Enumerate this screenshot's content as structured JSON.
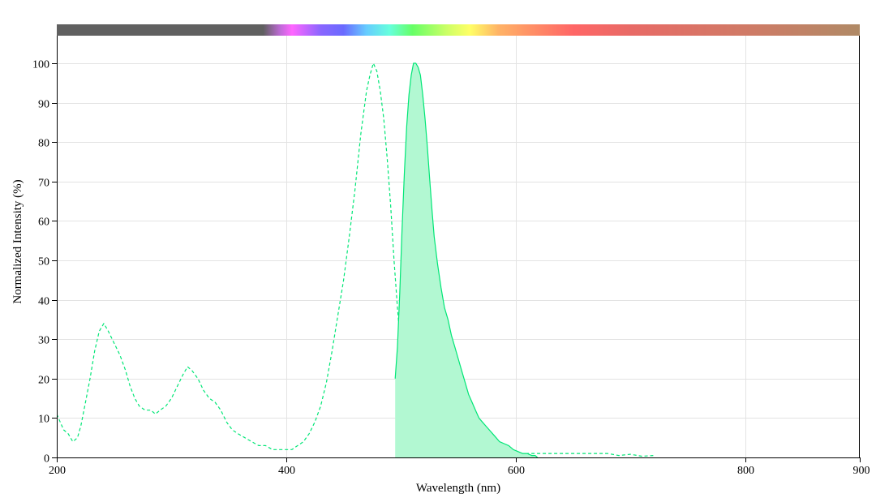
{
  "chart_data": {
    "type": "line",
    "xlabel": "Wavelength (nm)",
    "ylabel": "Normalized Intensity (%)",
    "xlim": [
      200,
      900
    ],
    "ylim": [
      0,
      100
    ],
    "x_ticks": [
      200,
      400,
      600,
      800,
      900
    ],
    "y_ticks": [
      0,
      10,
      20,
      30,
      40,
      50,
      60,
      70,
      80,
      90,
      100
    ],
    "grid": true,
    "spectrum_bar": true,
    "series": [
      {
        "style": "dashed",
        "color": "#00e676",
        "fill": false,
        "points": [
          [
            200,
            11
          ],
          [
            203,
            9
          ],
          [
            206,
            7
          ],
          [
            210,
            6
          ],
          [
            214,
            4
          ],
          [
            218,
            5
          ],
          [
            221,
            8
          ],
          [
            225,
            14
          ],
          [
            229,
            20
          ],
          [
            233,
            27
          ],
          [
            237,
            32
          ],
          [
            241,
            34
          ],
          [
            245,
            32
          ],
          [
            250,
            29
          ],
          [
            255,
            26
          ],
          [
            260,
            22
          ],
          [
            264,
            18
          ],
          [
            268,
            15
          ],
          [
            272,
            13
          ],
          [
            277,
            12
          ],
          [
            282,
            12
          ],
          [
            286,
            11
          ],
          [
            290,
            12
          ],
          [
            295,
            13
          ],
          [
            300,
            15
          ],
          [
            305,
            18
          ],
          [
            310,
            21
          ],
          [
            314,
            23
          ],
          [
            318,
            22
          ],
          [
            323,
            20
          ],
          [
            328,
            17
          ],
          [
            333,
            15
          ],
          [
            338,
            14
          ],
          [
            343,
            12
          ],
          [
            348,
            9
          ],
          [
            353,
            7
          ],
          [
            358,
            6
          ],
          [
            364,
            5
          ],
          [
            370,
            4
          ],
          [
            376,
            3
          ],
          [
            382,
            3
          ],
          [
            388,
            2
          ],
          [
            394,
            2
          ],
          [
            400,
            2
          ],
          [
            405,
            2
          ],
          [
            410,
            3
          ],
          [
            415,
            4
          ],
          [
            420,
            6
          ],
          [
            425,
            9
          ],
          [
            430,
            13
          ],
          [
            435,
            19
          ],
          [
            440,
            27
          ],
          [
            445,
            36
          ],
          [
            450,
            45
          ],
          [
            455,
            56
          ],
          [
            460,
            68
          ],
          [
            465,
            82
          ],
          [
            470,
            93
          ],
          [
            473,
            97
          ],
          [
            476,
            100
          ],
          [
            479,
            98
          ],
          [
            482,
            93
          ],
          [
            485,
            86
          ],
          [
            488,
            76
          ],
          [
            491,
            64
          ],
          [
            494,
            50
          ],
          [
            497,
            38
          ],
          [
            500,
            27
          ],
          [
            503,
            19
          ],
          [
            507,
            12
          ],
          [
            511,
            7
          ],
          [
            515,
            4
          ],
          [
            520,
            2
          ],
          [
            527,
            1
          ],
          [
            540,
            1
          ],
          [
            560,
            1
          ],
          [
            580,
            1
          ],
          [
            600,
            1
          ],
          [
            620,
            1
          ],
          [
            640,
            1
          ],
          [
            660,
            1
          ],
          [
            680,
            1
          ],
          [
            690,
            0.5
          ],
          [
            700,
            0.8
          ],
          [
            710,
            0.3
          ],
          [
            720,
            0.5
          ]
        ]
      },
      {
        "style": "solid",
        "color": "#00e676",
        "fill": true,
        "fill_color": "#b2f8d2",
        "points": [
          [
            495,
            20
          ],
          [
            497,
            28
          ],
          [
            499,
            42
          ],
          [
            501,
            58
          ],
          [
            503,
            72
          ],
          [
            505,
            84
          ],
          [
            507,
            92
          ],
          [
            509,
            97
          ],
          [
            511,
            100
          ],
          [
            513,
            100
          ],
          [
            515,
            99
          ],
          [
            517,
            97
          ],
          [
            519,
            92
          ],
          [
            521,
            86
          ],
          [
            523,
            79
          ],
          [
            525,
            71
          ],
          [
            527,
            63
          ],
          [
            529,
            56
          ],
          [
            532,
            49
          ],
          [
            535,
            43
          ],
          [
            538,
            38
          ],
          [
            541,
            35
          ],
          [
            544,
            31
          ],
          [
            547,
            28
          ],
          [
            550,
            25
          ],
          [
            553,
            22
          ],
          [
            556,
            19
          ],
          [
            559,
            16
          ],
          [
            562,
            14
          ],
          [
            565,
            12
          ],
          [
            568,
            10
          ],
          [
            571,
            9
          ],
          [
            574,
            8
          ],
          [
            577,
            7
          ],
          [
            580,
            6
          ],
          [
            583,
            5
          ],
          [
            586,
            4
          ],
          [
            590,
            3.5
          ],
          [
            594,
            3
          ],
          [
            598,
            2
          ],
          [
            602,
            1.5
          ],
          [
            606,
            1
          ],
          [
            610,
            1
          ],
          [
            614,
            0.5
          ],
          [
            617,
            0.5
          ],
          [
            619,
            0
          ]
        ]
      }
    ],
    "spectrum_stops": [
      {
        "nm": 200,
        "color": "#606060"
      },
      {
        "nm": 380,
        "color": "#606060"
      },
      {
        "nm": 395,
        "color": "#c06ad8"
      },
      {
        "nm": 405,
        "color": "#ff66ff"
      },
      {
        "nm": 430,
        "color": "#8a66ff"
      },
      {
        "nm": 450,
        "color": "#6a6aff"
      },
      {
        "nm": 470,
        "color": "#66ccff"
      },
      {
        "nm": 490,
        "color": "#66ffdd"
      },
      {
        "nm": 510,
        "color": "#66ff66"
      },
      {
        "nm": 540,
        "color": "#ccff66"
      },
      {
        "nm": 560,
        "color": "#ffff66"
      },
      {
        "nm": 585,
        "color": "#ffb366"
      },
      {
        "nm": 620,
        "color": "#ff8866"
      },
      {
        "nm": 650,
        "color": "#ff6666"
      },
      {
        "nm": 700,
        "color": "#e86a66"
      },
      {
        "nm": 800,
        "color": "#d07a66"
      },
      {
        "nm": 900,
        "color": "#b08a66"
      }
    ]
  }
}
